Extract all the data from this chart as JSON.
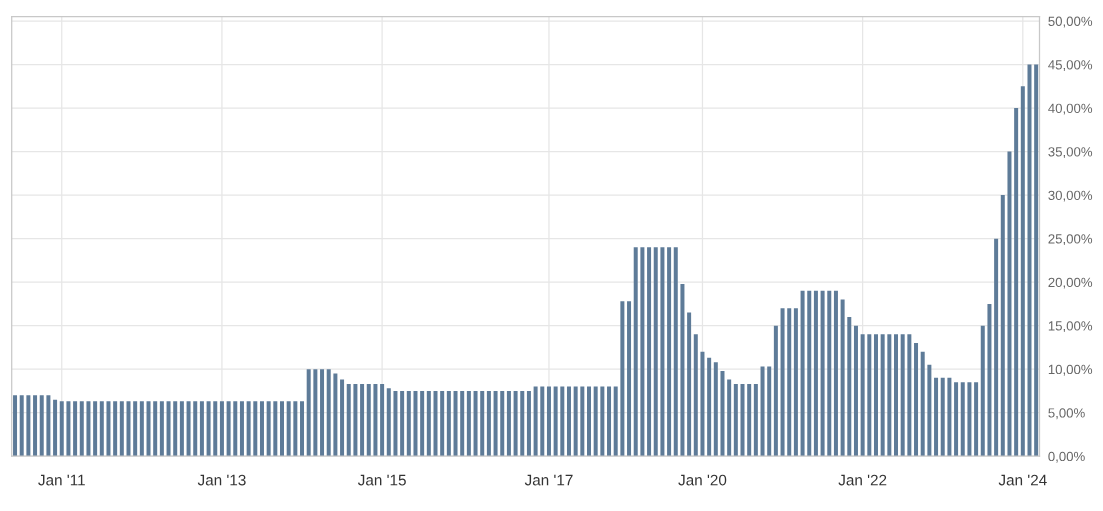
{
  "chart_data": {
    "type": "bar",
    "color": "#5e7b98",
    "categories": [
      null,
      null,
      null,
      null,
      null,
      null,
      null,
      "Jan '11",
      null,
      null,
      null,
      null,
      null,
      null,
      null,
      null,
      null,
      null,
      null,
      null,
      null,
      null,
      null,
      null,
      null,
      null,
      null,
      null,
      null,
      null,
      null,
      "Jan '13",
      null,
      null,
      null,
      null,
      null,
      null,
      null,
      null,
      null,
      null,
      null,
      null,
      null,
      null,
      null,
      null,
      null,
      null,
      null,
      null,
      null,
      null,
      null,
      "Jan '15",
      null,
      null,
      null,
      null,
      null,
      null,
      null,
      null,
      null,
      null,
      null,
      null,
      null,
      null,
      null,
      null,
      null,
      null,
      null,
      null,
      null,
      null,
      null,
      null,
      "Jan '17",
      null,
      null,
      null,
      null,
      null,
      null,
      null,
      null,
      null,
      null,
      null,
      null,
      null,
      null,
      null,
      null,
      null,
      null,
      null,
      null,
      null,
      null,
      "Jan '20",
      null,
      null,
      null,
      null,
      null,
      null,
      null,
      null,
      null,
      null,
      null,
      null,
      null,
      null,
      null,
      null,
      null,
      null,
      null,
      null,
      null,
      null,
      null,
      "Jan '22",
      null,
      null,
      null,
      null,
      null,
      null,
      null,
      null,
      null,
      null,
      null,
      null,
      null,
      null,
      null,
      null,
      null,
      null,
      null,
      null,
      null,
      null,
      null,
      "Jan '24",
      null,
      null
    ],
    "values": [
      7,
      7,
      7,
      7,
      7,
      7,
      6.5,
      6.3,
      6.3,
      6.3,
      6.3,
      6.3,
      6.3,
      6.3,
      6.3,
      6.3,
      6.3,
      6.3,
      6.3,
      6.3,
      6.3,
      6.3,
      6.3,
      6.3,
      6.3,
      6.3,
      6.3,
      6.3,
      6.3,
      6.3,
      6.3,
      6.3,
      6.3,
      6.3,
      6.3,
      6.3,
      6.3,
      6.3,
      6.3,
      6.3,
      6.3,
      6.3,
      6.3,
      6.3,
      10,
      10,
      10,
      10,
      9.5,
      8.8,
      8.3,
      8.3,
      8.3,
      8.3,
      8.3,
      8.3,
      7.8,
      7.5,
      7.5,
      7.5,
      7.5,
      7.5,
      7.5,
      7.5,
      7.5,
      7.5,
      7.5,
      7.5,
      7.5,
      7.5,
      7.5,
      7.5,
      7.5,
      7.5,
      7.5,
      7.5,
      7.5,
      7.5,
      8,
      8,
      8,
      8,
      8,
      8,
      8,
      8,
      8,
      8,
      8,
      8,
      8,
      17.8,
      17.8,
      24,
      24,
      24,
      24,
      24,
      24,
      24,
      19.8,
      16.5,
      14,
      12,
      11.3,
      10.8,
      9.8,
      8.8,
      8.3,
      8.3,
      8.3,
      8.3,
      10.3,
      10.3,
      15,
      17,
      17,
      17,
      19,
      19,
      19,
      19,
      19,
      19,
      18,
      16,
      15,
      14,
      14,
      14,
      14,
      14,
      14,
      14,
      14,
      13,
      12,
      10.5,
      9,
      9,
      9,
      8.5,
      8.5,
      8.5,
      8.5,
      15,
      17.5,
      25,
      30,
      35,
      40,
      42.5,
      45,
      45
    ],
    "ylim": [
      0,
      50.5
    ],
    "yticks": [
      {
        "value": 0,
        "label": "0,00%"
      },
      {
        "value": 5,
        "label": "5,00%"
      },
      {
        "value": 10,
        "label": "10,00%"
      },
      {
        "value": 15,
        "label": "15,00%"
      },
      {
        "value": 20,
        "label": "20,00%"
      },
      {
        "value": 25,
        "label": "25,00%"
      },
      {
        "value": 30,
        "label": "30,00%"
      },
      {
        "value": 35,
        "label": "35,00%"
      },
      {
        "value": 40,
        "label": "40,00%"
      },
      {
        "value": 45,
        "label": "45,00%"
      },
      {
        "value": 50,
        "label": "50,00%"
      }
    ],
    "grid": true
  }
}
